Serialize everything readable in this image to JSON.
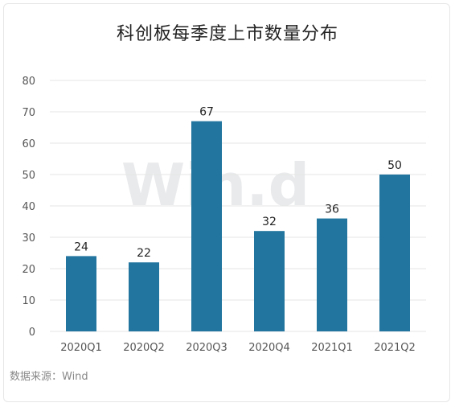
{
  "title": "科创板每季度上市数量分布",
  "source": "数据来源：Wind",
  "watermark": "Win.d",
  "colors": {
    "bar": "#21759e",
    "grid": "#e5e5e5"
  },
  "chart_data": {
    "type": "bar",
    "title": "科创板每季度上市数量分布",
    "xlabel": "",
    "ylabel": "",
    "categories": [
      "2020Q1",
      "2020Q2",
      "2020Q3",
      "2020Q4",
      "2021Q1",
      "2021Q2"
    ],
    "values": [
      24,
      22,
      67,
      32,
      36,
      50
    ],
    "ylim": [
      0,
      80
    ],
    "yticks": [
      0,
      10,
      20,
      30,
      40,
      50,
      60,
      70,
      80
    ],
    "grid": true,
    "data_labels": true
  }
}
